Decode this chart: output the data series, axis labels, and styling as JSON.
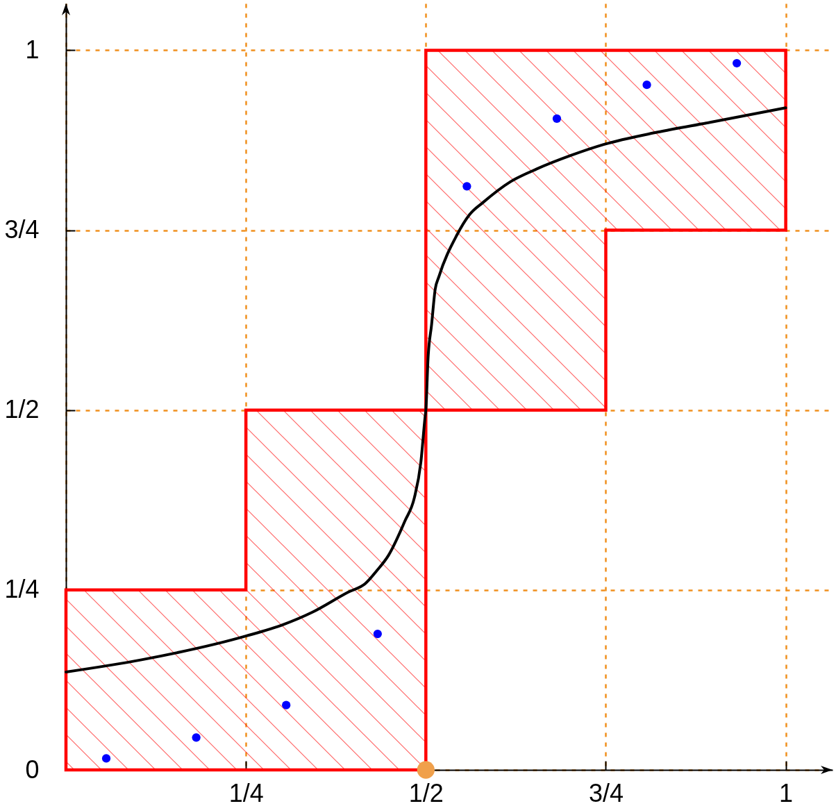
{
  "chart_data": {
    "type": "line",
    "xlim": [
      0,
      1.065
    ],
    "ylim": [
      0,
      1.065
    ],
    "xticks": [
      {
        "value": 0,
        "label": null
      },
      {
        "value": 0.25,
        "label": "1/4"
      },
      {
        "value": 0.5,
        "label": "1/2"
      },
      {
        "value": 0.75,
        "label": "3/4"
      },
      1
    ],
    "yticks": [
      0,
      {
        "value": 0.25,
        "label": "1/4"
      },
      {
        "value": 0.5,
        "label": "1/2"
      },
      {
        "value": 0.75,
        "label": "3/4"
      },
      1
    ],
    "grid": true,
    "series": [
      {
        "type": "area",
        "color": "#ff0000",
        "x": [
          0,
          0.25,
          0.25,
          0.5,
          0.5,
          0.75,
          0.75,
          1
        ],
        "values": [
          null,
          null,
          null,
          null,
          null,
          null,
          null,
          null
        ],
        "lower": [
          0,
          0,
          0,
          0,
          0.5,
          0.5,
          0.75,
          0.75
        ],
        "upper": [
          0.25,
          0.25,
          0.5,
          0.5,
          1,
          1,
          1,
          1
        ]
      },
      {
        "type": "line",
        "color": "#000000",
        "x": [
          0,
          0.105,
          0.25,
          0.302,
          0.342,
          0.392,
          0.416,
          0.432,
          0.448,
          0.471,
          0.484,
          0.493,
          0.499,
          0.5,
          0.503,
          0.508,
          0.513,
          0.518,
          0.543,
          0.561,
          0.58,
          0.617,
          0.654,
          0.702,
          0.747,
          0.821,
          0.896,
          1
        ],
        "values": [
          0.136,
          0.153,
          0.186,
          0.202,
          0.219,
          0.247,
          0.259,
          0.277,
          0.298,
          0.346,
          0.378,
          0.427,
          0.491,
          0.5,
          0.571,
          0.619,
          0.668,
          0.685,
          0.743,
          0.772,
          0.789,
          0.817,
          0.835,
          0.854,
          0.869,
          0.886,
          0.9,
          0.92
        ]
      },
      {
        "type": "scatter",
        "color": "#0000ff",
        "marker": "circle",
        "x": [
          0.056,
          0.181,
          0.306,
          0.433,
          0.557,
          0.682,
          0.807,
          0.932
        ],
        "values": [
          0.016,
          0.045,
          0.09,
          0.189,
          0.811,
          0.905,
          0.952,
          0.982
        ]
      },
      {
        "type": "scatter",
        "color": "#f0a04b",
        "marker": "circle",
        "x": [
          0.5
        ],
        "values": [
          0
        ]
      }
    ]
  }
}
